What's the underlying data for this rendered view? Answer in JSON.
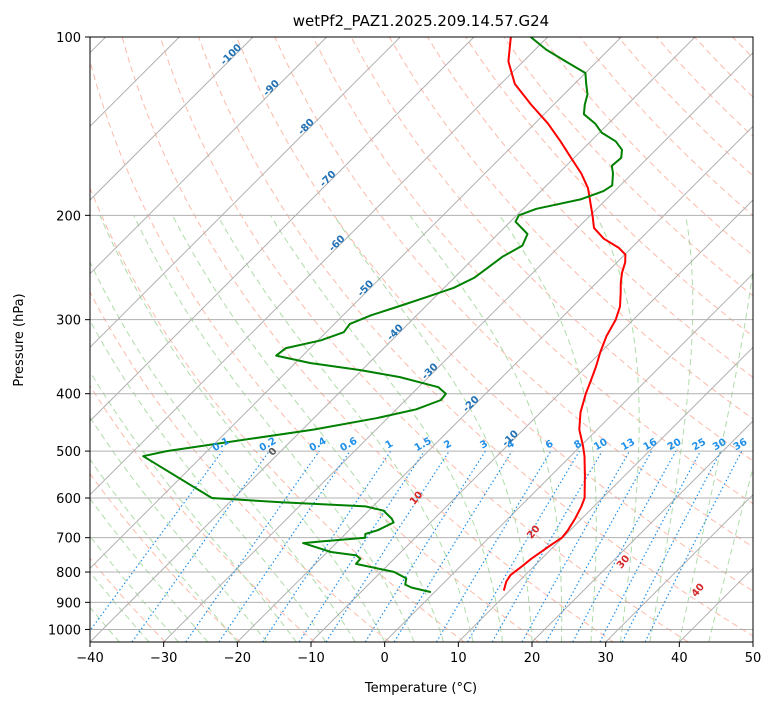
{
  "chart_data": {
    "type": "line",
    "title": "wetPf2_PAZ1.2025.209.14.57.G24",
    "xlabel": "Temperature (°C)",
    "ylabel": "Pressure (hPa)",
    "xlim": [
      -40,
      50
    ],
    "ylim": [
      1050,
      100
    ],
    "y_scale": "log",
    "x_ticks": [
      "−40",
      "−30",
      "−20",
      "−10",
      "0",
      "10",
      "20",
      "30",
      "40",
      "50"
    ],
    "y_ticks": [
      "100",
      "200",
      "300",
      "400",
      "500",
      "600",
      "700",
      "800",
      "900",
      "1000"
    ],
    "grid": true,
    "series": [
      {
        "color": "#ff0000",
        "points": [
          [
            9.2,
            860
          ],
          [
            8.3,
            830
          ],
          [
            8.0,
            810
          ],
          [
            8.4,
            780
          ],
          [
            8.6,
            760
          ],
          [
            9.4,
            720
          ],
          [
            9.9,
            700
          ],
          [
            9.7,
            680
          ],
          [
            9.1,
            650
          ],
          [
            8.3,
            620
          ],
          [
            7.6,
            600
          ],
          [
            4.6,
            550
          ],
          [
            1.9,
            510
          ],
          [
            0.3,
            490
          ],
          [
            -2.4,
            460
          ],
          [
            -4.6,
            430
          ],
          [
            -6.4,
            400
          ],
          [
            -7.5,
            380
          ],
          [
            -8.7,
            360
          ],
          [
            -10.1,
            340
          ],
          [
            -11.4,
            320
          ],
          [
            -12.4,
            300
          ],
          [
            -13.6,
            285
          ],
          [
            -15.4,
            270
          ],
          [
            -16.7,
            260
          ],
          [
            -17.9,
            250
          ],
          [
            -18.9,
            240
          ],
          [
            -19.9,
            233
          ],
          [
            -21.7,
            227
          ],
          [
            -25.0,
            219
          ],
          [
            -27.8,
            210
          ],
          [
            -29.7,
            200
          ],
          [
            -31.8,
            190
          ],
          [
            -34.0,
            180
          ],
          [
            -36.9,
            170
          ],
          [
            -40.4,
            160
          ],
          [
            -44.1,
            150
          ],
          [
            -48.2,
            140
          ],
          [
            -53.1,
            130
          ],
          [
            -58.1,
            120
          ],
          [
            -62.0,
            110
          ],
          [
            -65.0,
            100
          ]
        ]
      },
      {
        "color": "#008000",
        "points": [
          [
            -0.5,
            865
          ],
          [
            -3.7,
            850
          ],
          [
            -5.0,
            840
          ],
          [
            -5.7,
            820
          ],
          [
            -8.2,
            800
          ],
          [
            -14.5,
            775
          ],
          [
            -14.6,
            760
          ],
          [
            -15.6,
            750
          ],
          [
            -19.5,
            740
          ],
          [
            -24.5,
            715
          ],
          [
            -22.0,
            710
          ],
          [
            -16.8,
            700
          ],
          [
            -17.3,
            690
          ],
          [
            -16.1,
            680
          ],
          [
            -15.0,
            660
          ],
          [
            -15.8,
            650
          ],
          [
            -18.0,
            630
          ],
          [
            -21.0,
            620
          ],
          [
            -33.0,
            610
          ],
          [
            -43.0,
            600
          ],
          [
            -58.0,
            510
          ],
          [
            -55.5,
            500
          ],
          [
            -38.5,
            460
          ],
          [
            -31.5,
            440
          ],
          [
            -27.3,
            425
          ],
          [
            -25.2,
            410
          ],
          [
            -25.4,
            400
          ],
          [
            -27.3,
            390
          ],
          [
            -33.9,
            375
          ],
          [
            -40.2,
            365
          ],
          [
            -48.0,
            355
          ],
          [
            -53.6,
            345
          ],
          [
            -53.3,
            335
          ],
          [
            -49.6,
            325
          ],
          [
            -47.6,
            315
          ],
          [
            -47.9,
            305
          ],
          [
            -46.2,
            295
          ],
          [
            -43.7,
            285
          ],
          [
            -41.2,
            275
          ],
          [
            -38.7,
            265
          ],
          [
            -37.3,
            255
          ],
          [
            -36.8,
            245
          ],
          [
            -36.3,
            235
          ],
          [
            -35.1,
            225
          ],
          [
            -36.0,
            215
          ],
          [
            -39.3,
            205
          ],
          [
            -39.7,
            200
          ],
          [
            -38.2,
            195
          ],
          [
            -33.5,
            188
          ],
          [
            -31.5,
            182
          ],
          [
            -31.1,
            178
          ],
          [
            -32.6,
            170
          ],
          [
            -33.8,
            165
          ],
          [
            -33.6,
            160
          ],
          [
            -34.6,
            155
          ],
          [
            -36.6,
            150
          ],
          [
            -39.7,
            145
          ],
          [
            -41.8,
            140
          ],
          [
            -44.6,
            135
          ],
          [
            -45.8,
            130
          ],
          [
            -46.8,
            125
          ],
          [
            -48.4,
            120
          ],
          [
            -50.0,
            115
          ],
          [
            -54.2,
            110
          ],
          [
            -58.5,
            105
          ],
          [
            -62.3,
            100
          ]
        ]
      }
    ],
    "mixing_ratio_labels": [
      "0.1",
      "0.2",
      "0.4",
      "0.6",
      "1",
      "1.5",
      "2",
      "3",
      "4",
      "6",
      "8",
      "10",
      "13",
      "16",
      "20",
      "25",
      "30",
      "36"
    ],
    "isotherm_labels": [
      "-100",
      "-90",
      "-80",
      "-70",
      "-60",
      "-50",
      "-40",
      "-30",
      "-20",
      "-10"
    ],
    "moist_adiabat_labels": [
      "0",
      "10",
      "20",
      "30",
      "40"
    ]
  },
  "colors": {
    "temperature": "#ff0000",
    "dewpoint": "#008000",
    "isobar_grid": "#b0b0b0",
    "isotherm_grid": "#b0b0b0",
    "dry_adiabat": "#fdae9a",
    "moist_adiabat": "#a6d8a0",
    "mixing_ratio": "#1f8fe8",
    "isotherm_label": "#2171b5",
    "moist_label": "#d62728",
    "background": "#ffffff"
  }
}
